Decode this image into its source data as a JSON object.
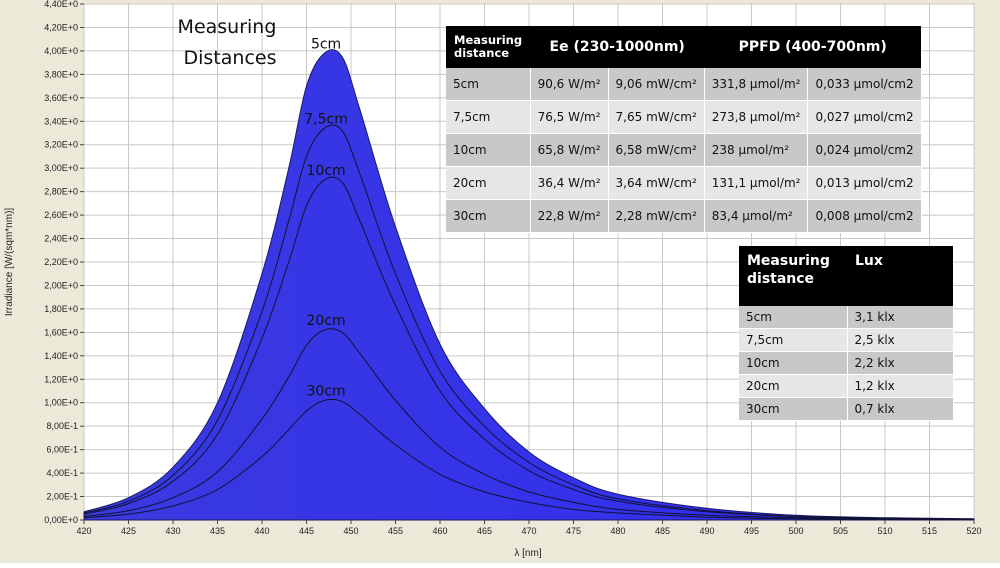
{
  "chart_data": {
    "type": "area",
    "title": "Measuring Distances",
    "xlabel": "λ [nm]",
    "ylabel": "Irradiance [W/(sqm*nm)]",
    "xlim": [
      420,
      520
    ],
    "ylim": [
      0,
      4.4
    ],
    "grid": true,
    "xticks": [
      "420",
      "425",
      "430",
      "435",
      "440",
      "445",
      "450",
      "455",
      "460",
      "465",
      "470",
      "475",
      "480",
      "485",
      "490",
      "495",
      "500",
      "505",
      "510",
      "515",
      "520"
    ],
    "yticks": [
      "0,00E+0",
      "2,00E-1",
      "4,00E-1",
      "6,00E-1",
      "8,00E-1",
      "1,00E+0",
      "1,20E+0",
      "1,40E+0",
      "1,60E+0",
      "1,80E+0",
      "2,00E+0",
      "2,20E+0",
      "2,40E+0",
      "2,60E+0",
      "2,80E+0",
      "3,00E+0",
      "3,20E+0",
      "3,40E+0",
      "3,60E+0",
      "3,80E+0",
      "4,00E+0",
      "4,20E+0",
      "4,40E+0"
    ],
    "x": [
      420,
      425,
      430,
      435,
      440,
      443,
      445,
      447,
      449,
      451,
      455,
      460,
      465,
      470,
      475,
      480,
      490,
      500,
      510,
      520
    ],
    "series": [
      {
        "name": "5cm",
        "peak_label": "5cm",
        "values": [
          0.07,
          0.19,
          0.45,
          1.0,
          2.1,
          3.0,
          3.7,
          3.98,
          3.95,
          3.5,
          2.5,
          1.5,
          0.95,
          0.58,
          0.36,
          0.22,
          0.1,
          0.04,
          0.02,
          0.01
        ]
      },
      {
        "name": "7,5cm",
        "peak_label": "7,5cm",
        "values": [
          0.06,
          0.16,
          0.38,
          0.85,
          1.78,
          2.55,
          3.1,
          3.34,
          3.32,
          2.95,
          2.1,
          1.27,
          0.8,
          0.49,
          0.3,
          0.18,
          0.08,
          0.03,
          0.015,
          0.008
        ]
      },
      {
        "name": "10cm",
        "peak_label": "10cm",
        "values": [
          0.05,
          0.14,
          0.33,
          0.73,
          1.55,
          2.2,
          2.68,
          2.9,
          2.88,
          2.55,
          1.83,
          1.1,
          0.69,
          0.42,
          0.26,
          0.16,
          0.07,
          0.03,
          0.014,
          0.007
        ]
      },
      {
        "name": "20cm",
        "peak_label": "20cm",
        "values": [
          0.03,
          0.08,
          0.19,
          0.41,
          0.86,
          1.22,
          1.49,
          1.62,
          1.6,
          1.42,
          1.02,
          0.62,
          0.39,
          0.24,
          0.15,
          0.09,
          0.04,
          0.02,
          0.008,
          0.004
        ]
      },
      {
        "name": "30cm",
        "peak_label": "30cm",
        "values": [
          0.02,
          0.05,
          0.12,
          0.26,
          0.54,
          0.77,
          0.93,
          1.02,
          1.01,
          0.9,
          0.64,
          0.39,
          0.24,
          0.15,
          0.09,
          0.06,
          0.025,
          0.01,
          0.005,
          0.003
        ]
      }
    ]
  },
  "table_main": {
    "header": {
      "distance": "Measuring distance",
      "ee": "Ee  (230-1000nm)",
      "ppfd": "PPFD (400-700nm)"
    },
    "rows": [
      {
        "distance": "5cm",
        "ee_w": "90,6 W/m²",
        "ee_mw": "9,06 mW/cm²",
        "ppfd_m": "331,8 µmol/m²",
        "ppfd_cm": "0,033 µmol/cm2"
      },
      {
        "distance": "7,5cm",
        "ee_w": "76,5 W/m²",
        "ee_mw": "7,65 mW/cm²",
        "ppfd_m": "273,8 µmol/m²",
        "ppfd_cm": "0,027 µmol/cm2"
      },
      {
        "distance": "10cm",
        "ee_w": "65,8 W/m²",
        "ee_mw": "6,58 mW/cm²",
        "ppfd_m": "238 µmol/m²",
        "ppfd_cm": "0,024 µmol/cm2"
      },
      {
        "distance": "20cm",
        "ee_w": "36,4 W/m²",
        "ee_mw": "3,64 mW/cm²",
        "ppfd_m": "131,1 µmol/m²",
        "ppfd_cm": "0,013 µmol/cm2"
      },
      {
        "distance": "30cm",
        "ee_w": "22,8 W/m²",
        "ee_mw": "2,28 mW/cm²",
        "ppfd_m": "83,4 µmol/m²",
        "ppfd_cm": "0,008 µmol/cm2"
      }
    ]
  },
  "table_lux": {
    "header": {
      "distance": "Measuring distance",
      "lux": "Lux"
    },
    "rows": [
      {
        "distance": "5cm",
        "lux": "3,1 klx"
      },
      {
        "distance": "7,5cm",
        "lux": "2,5 klx"
      },
      {
        "distance": "10cm",
        "lux": "2,2 klx"
      },
      {
        "distance": "20cm",
        "lux": "1,2 klx"
      },
      {
        "distance": "30cm",
        "lux": "0,7 klx"
      }
    ]
  },
  "colors": {
    "fill_start": "#3a3adf",
    "fill_end": "#2f2cf3",
    "frame_bg": "#ece9d8",
    "grid": "#c8c8c8"
  }
}
